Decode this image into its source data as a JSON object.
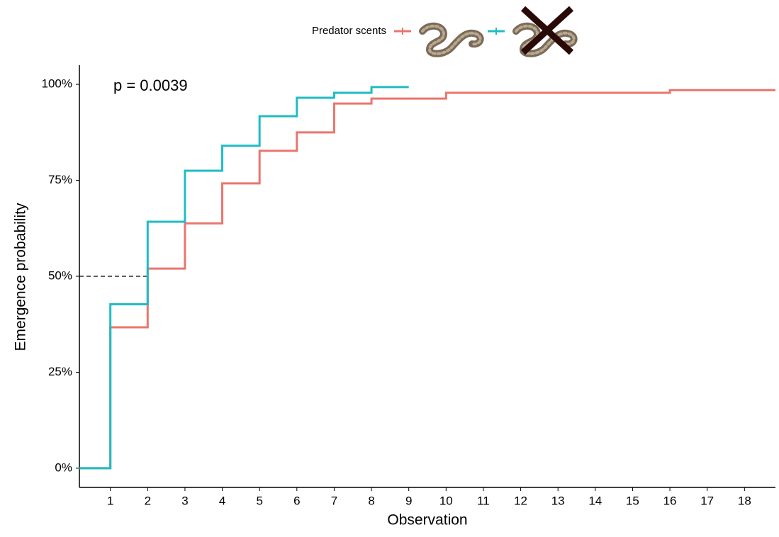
{
  "chart_data": {
    "type": "step",
    "legend_title": "Predator scents",
    "annotation": "p = 0.0039",
    "x_label": "Observation",
    "y_label": "Emergence probability",
    "xlim": [
      0.17,
      18.83
    ],
    "xticks": [
      1,
      2,
      3,
      4,
      5,
      6,
      7,
      8,
      9,
      10,
      11,
      12,
      13,
      14,
      15,
      16,
      17,
      18
    ],
    "ylim": [
      -5,
      105
    ],
    "yticks": [
      {
        "value": 0,
        "label": "0%"
      },
      {
        "value": 25,
        "label": "25%"
      },
      {
        "value": 50,
        "label": "50%"
      },
      {
        "value": 75,
        "label": "75%"
      },
      {
        "value": 100,
        "label": "100%"
      }
    ],
    "median_line": {
      "x": 2,
      "y": 50
    },
    "series": [
      {
        "color": "#e8766f",
        "x": [
          0,
          1,
          2,
          3,
          4,
          5,
          6,
          7,
          8,
          10,
          16,
          18.83
        ],
        "values": [
          0,
          36.7,
          52,
          63.8,
          74.2,
          82.7,
          87.5,
          95,
          96.3,
          97.8,
          98.5,
          98.5
        ]
      },
      {
        "color": "#1fbcc4",
        "x": [
          0,
          1,
          2,
          3,
          4,
          5,
          6,
          7,
          8,
          9
        ],
        "values": [
          0,
          42.7,
          64.2,
          77.5,
          84,
          91.7,
          96.5,
          97.8,
          99.3,
          99.3
        ]
      }
    ]
  }
}
